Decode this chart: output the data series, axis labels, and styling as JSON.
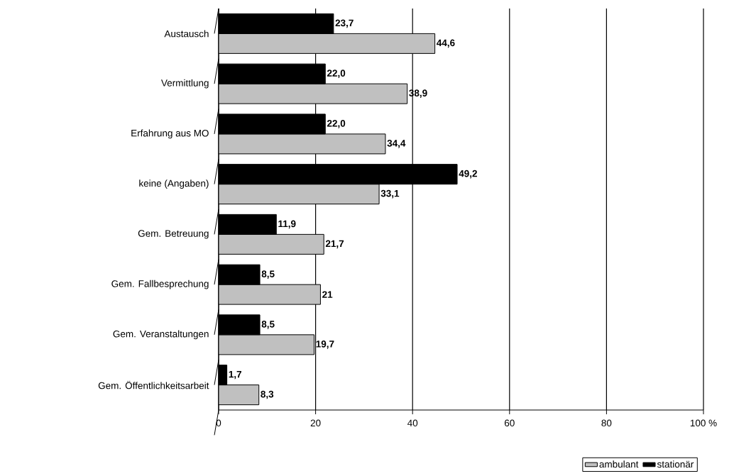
{
  "chart_data": {
    "type": "bar",
    "orientation": "horizontal",
    "categories": [
      "Austausch",
      "Vermittlung",
      "Erfahrung aus MO",
      "keine (Angaben)",
      "Gem. Betreuung",
      "Gem. Fallbesprechung",
      "Gem. Veranstaltungen",
      "Gem. Öffentlichkeitsarbeit"
    ],
    "series": [
      {
        "name": "ambulant",
        "color": "#c0c0c0",
        "values": [
          44.6,
          38.9,
          34.4,
          33.1,
          21.7,
          21,
          19.7,
          8.3
        ],
        "value_labels": [
          "44,6",
          "38,9",
          "34,4",
          "33,1",
          "21,7",
          "21",
          "19,7",
          "8,3"
        ]
      },
      {
        "name": "stationär",
        "color": "#000000",
        "values": [
          23.7,
          22.0,
          22.0,
          49.2,
          11.9,
          8.5,
          8.5,
          1.7
        ],
        "value_labels": [
          "23,7",
          "22,0",
          "22,0",
          "49,2",
          "11,9",
          "8,5",
          "8,5",
          "1,7"
        ]
      }
    ],
    "xlim": [
      0,
      100
    ],
    "xticks": [
      0,
      20,
      40,
      60,
      80,
      {
        "value": 100,
        "label": "100 %"
      }
    ],
    "grid": "x",
    "legend": "bottom right"
  }
}
